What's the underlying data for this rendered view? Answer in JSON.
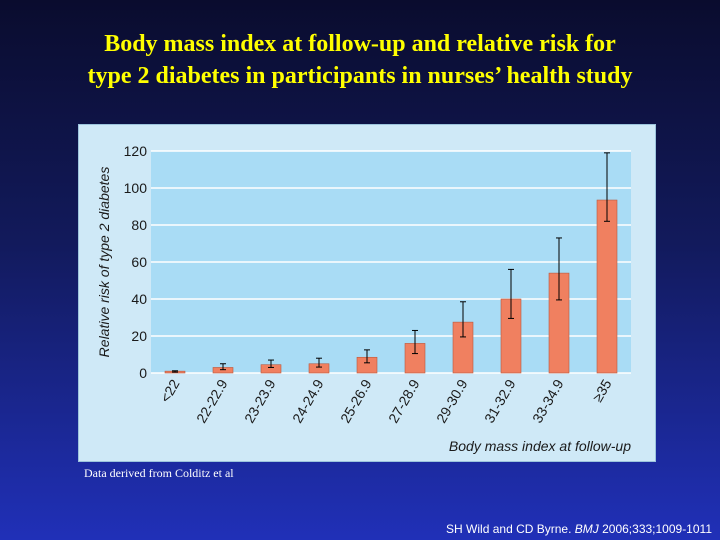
{
  "slide": {
    "title_line1": "Body mass index  at follow-up  and relative risk  for",
    "title_line2": "type 2 diabetes in participants in nurses’ health study",
    "source_note": "Data derived from Colditz et al",
    "citation_authors": "SH Wild and CD Byrne.",
    "citation_journal": "BMJ",
    "citation_ref": "2006;333;1009-1011"
  },
  "colors": {
    "title": "#ffff00",
    "bar_fill": "#f08060",
    "plot_bg": "#a9dcf5",
    "panel_bg": "#cfe9f7",
    "gridline": "#ffffff"
  },
  "chart_data": {
    "type": "bar",
    "title": "",
    "xlabel": "Body mass index at follow-up",
    "ylabel": "Relative risk of type 2 diabetes",
    "ylim": [
      0,
      120
    ],
    "yticks": [
      "0",
      "20",
      "40",
      "60",
      "80",
      "100",
      "120"
    ],
    "grid": true,
    "categories": [
      "<22",
      "22-22.9",
      "23-23.9",
      "24-24.9",
      "25-26.9",
      "27-28.9",
      "29-30.9",
      "31-32.9",
      "33-34.9",
      "≥35"
    ],
    "values": [
      1,
      3,
      4.5,
      5,
      8.5,
      16,
      27.5,
      40,
      54,
      93.5
    ],
    "error_low": [
      0.5,
      1.8,
      3,
      3.2,
      5.5,
      10.5,
      19.5,
      29.5,
      39.5,
      82
    ],
    "error_high": [
      1.2,
      5,
      7,
      8,
      12.5,
      23,
      38.5,
      56,
      73,
      119
    ]
  }
}
